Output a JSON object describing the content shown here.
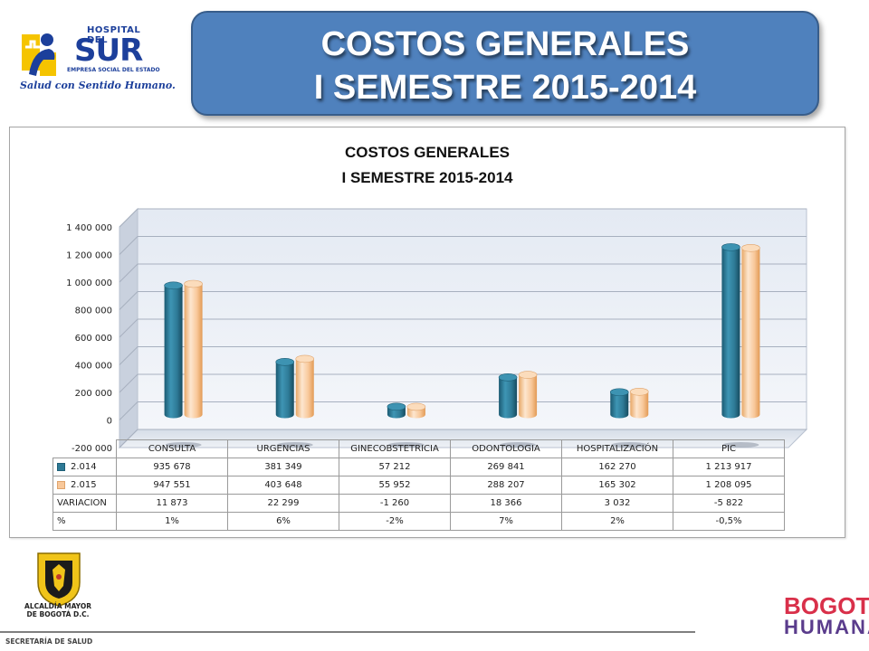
{
  "header": {
    "logo": {
      "hospital_text": "HOSPITAL DEL",
      "sur_text": "SUR",
      "empresa_text": "EMPRESA SOCIAL DEL ESTADO",
      "slogan": "Salud con Sentido Humano."
    },
    "banner": {
      "line1": "COSTOS GENERALES",
      "line2": "I SEMESTRE 2015-2014"
    }
  },
  "chart_data": {
    "type": "bar",
    "title_line1": "COSTOS GENERALES",
    "title_line2": "I SEMESTRE 2015-2014",
    "categories": [
      "CONSULTA",
      "URGENCIAS",
      "GINECOBSTETRICIA",
      "ODONTOLOGIA",
      "HOSPITALIZACIÓN",
      "PIC"
    ],
    "series": [
      {
        "name": "2.014",
        "color": "#2e7a96",
        "values": [
          935678,
          381349,
          57212,
          269841,
          162270,
          1213917
        ]
      },
      {
        "name": "2.015",
        "color": "#f8c89a",
        "values": [
          947551,
          403648,
          55952,
          288207,
          165302,
          1208095
        ]
      }
    ],
    "ylim": [
      -200000,
      1400000
    ],
    "yticks": [
      -200000,
      0,
      200000,
      400000,
      600000,
      800000,
      1000000,
      1200000,
      1400000
    ],
    "ytick_labels": [
      "-200 000",
      "0",
      "200 000",
      "400 000",
      "600 000",
      "800 000",
      "1 000 000",
      "1 200 000",
      "1 400 000"
    ],
    "grid": true,
    "legend": "table",
    "table": {
      "series_labels": [
        "2.014",
        "2.015"
      ],
      "series_values": [
        [
          "935 678",
          "381 349",
          "57 212",
          "269 841",
          "162 270",
          "1 213 917"
        ],
        [
          "947 551",
          "403 648",
          "55 952",
          "288 207",
          "165 302",
          "1 208 095"
        ]
      ],
      "extra_rows": [
        {
          "label": "VARIACION",
          "values": [
            "11 873",
            "22 299",
            "-1 260",
            "18 366",
            "3 032",
            "-5 822"
          ]
        },
        {
          "label": "%",
          "values": [
            "1%",
            "6%",
            "-2%",
            "7%",
            "2%",
            "-0,5%"
          ]
        }
      ]
    }
  },
  "footer": {
    "alcaldia_line1": "ALCALDÍA MAYOR",
    "alcaldia_line2": "DE BOGOTÁ D.C.",
    "secretaria": "SECRETARÍA DE SALUD",
    "bogota": "BOGOTÁ",
    "humana": "HUMANA"
  }
}
